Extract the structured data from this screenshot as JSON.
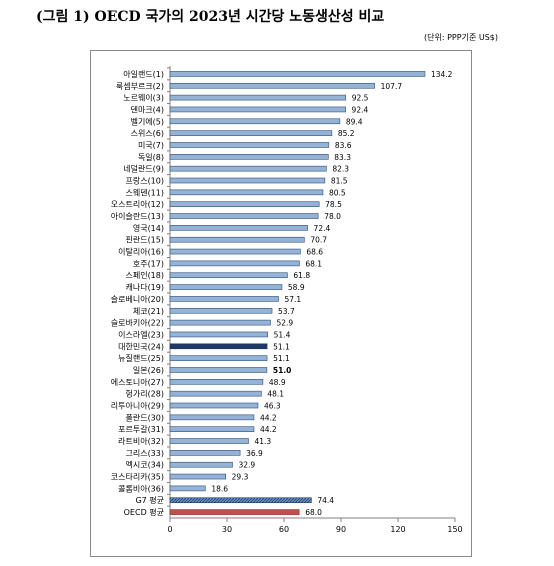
{
  "title": "(그림 1) OECD 국가의 2023년 시간당 노동생산성 비교",
  "unit": "(단위: PPP기준 US$)",
  "colors": {
    "bar": "#95b3d7",
    "bar_edge": "#2f4f75",
    "korea": "#1f3864",
    "g7": "#4f81bd",
    "oecd": "#c0504d",
    "axis": "#808080"
  },
  "chart_data": {
    "type": "bar",
    "orientation": "horizontal",
    "categories": [
      "아일랜드(1)",
      "룩셈부르크(2)",
      "노르웨이(3)",
      "덴마크(4)",
      "벨기에(5)",
      "스위스(6)",
      "미국(7)",
      "독일(8)",
      "네덜란드(9)",
      "프랑스(10)",
      "스웨덴(11)",
      "오스트리아(12)",
      "아이슬란드(13)",
      "영국(14)",
      "핀란드(15)",
      "이탈리아(16)",
      "호주(17)",
      "스페인(18)",
      "캐나다(19)",
      "슬로베니아(20)",
      "체코(21)",
      "슬로바키아(22)",
      "이스라엘(23)",
      "대한민국(24)",
      "뉴질랜드(25)",
      "일본(26)",
      "에스토니아(27)",
      "헝가리(28)",
      "리투아니아(29)",
      "폴란드(30)",
      "포르투갈(31)",
      "라트비아(32)",
      "그리스(33)",
      "멕시코(34)",
      "코스타리카(35)",
      "콜롬비아(36)",
      "G7 평균",
      "OECD 평균"
    ],
    "values": [
      134.2,
      107.7,
      92.5,
      92.4,
      89.4,
      85.2,
      83.6,
      83.3,
      82.3,
      81.5,
      80.5,
      78.5,
      78.0,
      72.4,
      70.7,
      68.6,
      68.1,
      61.8,
      58.9,
      57.1,
      53.7,
      52.9,
      51.4,
      51.1,
      51.1,
      51.0,
      48.9,
      48.1,
      46.3,
      44.2,
      44.2,
      41.3,
      36.9,
      32.9,
      29.3,
      18.6,
      74.4,
      68.0
    ],
    "value_labels": [
      "134.2",
      "107.7",
      "92.5",
      "92.4",
      "89.4",
      "85.2",
      "83.6",
      "83.3",
      "82.3",
      "81.5",
      "80.5",
      "78.5",
      "78.0",
      "72.4",
      "70.7",
      "68.6",
      "68.1",
      "61.8",
      "58.9",
      "57.1",
      "53.7",
      "52.9",
      "51.4",
      "51.1",
      "51.1",
      "51.0",
      "48.9",
      "48.1",
      "46.3",
      "44.2",
      "44.2",
      "41.3",
      "36.9",
      "32.9",
      "29.3",
      "18.6",
      "74.4",
      "68.0"
    ],
    "highlights": {
      "대한민국(24)": "korea",
      "G7 평균": "g7",
      "OECD 평균": "oecd"
    },
    "bold_value_labels": [
      "일본(26)"
    ],
    "xlim": [
      0,
      150
    ],
    "xticks": [
      0,
      30,
      60,
      90,
      120,
      150
    ],
    "grid": false,
    "legend": "none"
  }
}
